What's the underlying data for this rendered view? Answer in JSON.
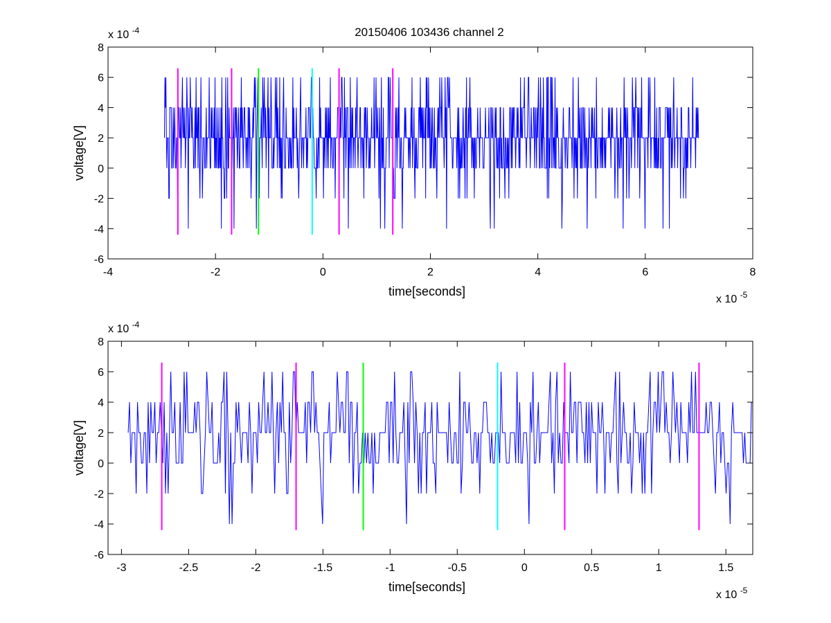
{
  "figure": {
    "title": "20150406 103436 channel 2"
  },
  "colors": {
    "signal": "#0000ff",
    "magenta": "#ff00ff",
    "green": "#00ff00",
    "cyan": "#00ffff"
  },
  "chart_data": [
    {
      "type": "line",
      "title": "20150406 103436 channel 2",
      "xlabel": "time[seconds]",
      "ylabel": "voltage[V]",
      "x_exponent": "x 10",
      "x_exponent_power": "-5",
      "y_exponent": "x 10",
      "y_exponent_power": "-4",
      "xlim": [
        -4,
        8
      ],
      "ylim": [
        -6,
        8
      ],
      "xticks": [
        -4,
        -2,
        0,
        2,
        4,
        6,
        8
      ],
      "xtick_labels": [
        "-4",
        "-2",
        "0",
        "2",
        "4",
        "6",
        "8"
      ],
      "yticks": [
        -6,
        -4,
        -2,
        0,
        2,
        4,
        6,
        8
      ],
      "ytick_labels": [
        "-6",
        "-4",
        "-2",
        "0",
        "2",
        "4",
        "6",
        "8"
      ],
      "grid": false,
      "series": [
        {
          "kind": "noise",
          "color": "blue",
          "x_start": -2.95,
          "x_end": 7.0,
          "samples": 1100,
          "levels": [
            -4,
            -2,
            0,
            2,
            4,
            6
          ],
          "seed": 7
        }
      ],
      "markers": [
        {
          "x": -2.7,
          "y_from": -4.4,
          "y_to": 6.6,
          "color": "magenta"
        },
        {
          "x": -1.7,
          "y_from": -4.4,
          "y_to": 6.6,
          "color": "magenta"
        },
        {
          "x": -1.2,
          "y_from": -4.4,
          "y_to": 6.6,
          "color": "green"
        },
        {
          "x": -0.2,
          "y_from": -4.4,
          "y_to": 6.6,
          "color": "cyan"
        },
        {
          "x": 0.3,
          "y_from": -4.4,
          "y_to": 6.6,
          "color": "magenta"
        },
        {
          "x": 1.3,
          "y_from": -4.4,
          "y_to": 6.6,
          "color": "magenta"
        }
      ]
    },
    {
      "type": "line",
      "title": "",
      "xlabel": "time[seconds]",
      "ylabel": "voltage[V]",
      "x_exponent": "x 10",
      "x_exponent_power": "-5",
      "y_exponent": "x 10",
      "y_exponent_power": "-4",
      "xlim": [
        -3.1,
        1.7
      ],
      "ylim": [
        -6,
        8
      ],
      "xticks": [
        -3,
        -2.5,
        -2,
        -1.5,
        -1,
        -0.5,
        0,
        0.5,
        1,
        1.5
      ],
      "xtick_labels": [
        "-3",
        "-2.5",
        "-2",
        "-1.5",
        "-1",
        "-0.5",
        "0",
        "0.5",
        "1",
        "1.5"
      ],
      "yticks": [
        -6,
        -4,
        -2,
        0,
        2,
        4,
        6,
        8
      ],
      "ytick_labels": [
        "-6",
        "-4",
        "-2",
        "0",
        "2",
        "4",
        "6",
        "8"
      ],
      "grid": false,
      "series": [
        {
          "kind": "noise",
          "color": "blue",
          "x_start": -2.95,
          "x_end": 1.7,
          "samples": 470,
          "levels": [
            -4,
            -2,
            0,
            2,
            4,
            6
          ],
          "seed": 13
        }
      ],
      "markers": [
        {
          "x": -2.7,
          "y_from": -4.4,
          "y_to": 6.6,
          "color": "magenta"
        },
        {
          "x": -1.7,
          "y_from": -4.4,
          "y_to": 6.6,
          "color": "magenta"
        },
        {
          "x": -1.2,
          "y_from": -4.4,
          "y_to": 6.6,
          "color": "green"
        },
        {
          "x": -0.2,
          "y_from": -4.4,
          "y_to": 6.6,
          "color": "cyan"
        },
        {
          "x": 0.3,
          "y_from": -4.4,
          "y_to": 6.6,
          "color": "magenta"
        },
        {
          "x": 1.3,
          "y_from": -4.4,
          "y_to": 6.6,
          "color": "magenta"
        }
      ]
    }
  ]
}
